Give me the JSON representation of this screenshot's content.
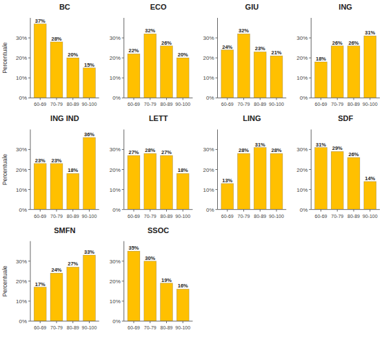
{
  "chart_data": [
    {
      "type": "bar",
      "title": "BC",
      "y_label": "Percentuale",
      "categories": [
        "60-69",
        "70-79",
        "80-89",
        "90-100"
      ],
      "values": [
        37,
        28,
        20,
        15
      ],
      "value_labels": [
        "37%",
        "28%",
        "20%",
        "15%"
      ],
      "color": "#FFC000",
      "ylim": [
        0,
        40
      ],
      "yticks": [
        {
          "value": 0,
          "label": "0%"
        },
        {
          "value": 10,
          "label": "10%"
        },
        {
          "value": 20,
          "label": "20%"
        },
        {
          "value": 30,
          "label": "30%"
        }
      ],
      "grid": false,
      "data_labels": true
    },
    {
      "type": "bar",
      "title": "ECO",
      "categories": [
        "60-69",
        "70-79",
        "80-89",
        "90-100"
      ],
      "values": [
        22,
        32,
        26,
        20
      ],
      "value_labels": [
        "22%",
        "32%",
        "26%",
        "20%"
      ],
      "color": "#FFC000",
      "ylim": [
        0,
        40
      ],
      "yticks": [
        {
          "value": 0,
          "label": "0%"
        },
        {
          "value": 10,
          "label": "10%"
        },
        {
          "value": 20,
          "label": "20%"
        },
        {
          "value": 30,
          "label": "30%"
        }
      ],
      "grid": false,
      "data_labels": true
    },
    {
      "type": "bar",
      "title": "GIU",
      "categories": [
        "60-69",
        "70-79",
        "80-89",
        "90-100"
      ],
      "values": [
        24,
        32,
        23,
        21
      ],
      "value_labels": [
        "24%",
        "32%",
        "23%",
        "21%"
      ],
      "color": "#FFC000",
      "ylim": [
        0,
        40
      ],
      "yticks": [
        {
          "value": 0,
          "label": "0%"
        },
        {
          "value": 10,
          "label": "10%"
        },
        {
          "value": 20,
          "label": "20%"
        },
        {
          "value": 30,
          "label": "30%"
        }
      ],
      "grid": false,
      "data_labels": true
    },
    {
      "type": "bar",
      "title": "ING",
      "categories": [
        "60-69",
        "70-79",
        "80-89",
        "90-100"
      ],
      "values": [
        18,
        26,
        26,
        31
      ],
      "value_labels": [
        "18%",
        "26%",
        "26%",
        "31%"
      ],
      "color": "#FFC000",
      "ylim": [
        0,
        40
      ],
      "yticks": [
        {
          "value": 0,
          "label": "0%"
        },
        {
          "value": 10,
          "label": "10%"
        },
        {
          "value": 20,
          "label": "20%"
        },
        {
          "value": 30,
          "label": "30%"
        }
      ],
      "grid": false,
      "data_labels": true
    },
    {
      "type": "bar",
      "title": "ING IND",
      "y_label": "Percentuale",
      "categories": [
        "60-69",
        "70-79",
        "80-89",
        "90-100"
      ],
      "values": [
        23,
        23,
        18,
        36
      ],
      "value_labels": [
        "23%",
        "23%",
        "18%",
        "36%"
      ],
      "color": "#FFC000",
      "ylim": [
        0,
        40
      ],
      "yticks": [
        {
          "value": 0,
          "label": "0%"
        },
        {
          "value": 10,
          "label": "10%"
        },
        {
          "value": 20,
          "label": "20%"
        },
        {
          "value": 30,
          "label": "30%"
        }
      ],
      "grid": false,
      "data_labels": true
    },
    {
      "type": "bar",
      "title": "LETT",
      "categories": [
        "60-69",
        "70-79",
        "80-89",
        "90-100"
      ],
      "values": [
        27,
        28,
        27,
        18
      ],
      "value_labels": [
        "27%",
        "28%",
        "27%",
        "18%"
      ],
      "color": "#FFC000",
      "ylim": [
        0,
        40
      ],
      "yticks": [
        {
          "value": 0,
          "label": "0%"
        },
        {
          "value": 10,
          "label": "10%"
        },
        {
          "value": 20,
          "label": "20%"
        },
        {
          "value": 30,
          "label": "30%"
        }
      ],
      "grid": false,
      "data_labels": true
    },
    {
      "type": "bar",
      "title": "LING",
      "categories": [
        "60-69",
        "70-79",
        "80-89",
        "90-100"
      ],
      "values": [
        13,
        28,
        31,
        28
      ],
      "value_labels": [
        "13%",
        "28%",
        "31%",
        "28%"
      ],
      "color": "#FFC000",
      "ylim": [
        0,
        40
      ],
      "yticks": [
        {
          "value": 0,
          "label": "0%"
        },
        {
          "value": 10,
          "label": "10%"
        },
        {
          "value": 20,
          "label": "20%"
        },
        {
          "value": 30,
          "label": "30%"
        }
      ],
      "grid": false,
      "data_labels": true
    },
    {
      "type": "bar",
      "title": "SDF",
      "categories": [
        "60-69",
        "70-79",
        "80-89",
        "90-100"
      ],
      "values": [
        31,
        29,
        26,
        14
      ],
      "value_labels": [
        "31%",
        "29%",
        "26%",
        "14%"
      ],
      "color": "#FFC000",
      "ylim": [
        0,
        40
      ],
      "yticks": [
        {
          "value": 0,
          "label": "0%"
        },
        {
          "value": 10,
          "label": "10%"
        },
        {
          "value": 20,
          "label": "20%"
        },
        {
          "value": 30,
          "label": "30%"
        }
      ],
      "grid": false,
      "data_labels": true
    },
    {
      "type": "bar",
      "title": "SMFN",
      "y_label": "Percentuale",
      "categories": [
        "60-69",
        "70-79",
        "80-89",
        "90-100"
      ],
      "values": [
        17,
        24,
        27,
        33
      ],
      "value_labels": [
        "17%",
        "24%",
        "27%",
        "33%"
      ],
      "color": "#FFC000",
      "ylim": [
        0,
        40
      ],
      "yticks": [
        {
          "value": 0,
          "label": "0%"
        },
        {
          "value": 10,
          "label": "10%"
        },
        {
          "value": 20,
          "label": "20%"
        },
        {
          "value": 30,
          "label": "30%"
        }
      ],
      "grid": false,
      "data_labels": true
    },
    {
      "type": "bar",
      "title": "SSOC",
      "categories": [
        "60-69",
        "70-79",
        "80-89",
        "90-100"
      ],
      "values": [
        35,
        30,
        19,
        16
      ],
      "value_labels": [
        "35%",
        "30%",
        "19%",
        "16%"
      ],
      "color": "#FFC000",
      "ylim": [
        0,
        40
      ],
      "yticks": [
        {
          "value": 0,
          "label": "0%"
        },
        {
          "value": 10,
          "label": "10%"
        },
        {
          "value": 20,
          "label": "20%"
        },
        {
          "value": 30,
          "label": "30%"
        }
      ],
      "grid": false,
      "data_labels": true
    }
  ]
}
